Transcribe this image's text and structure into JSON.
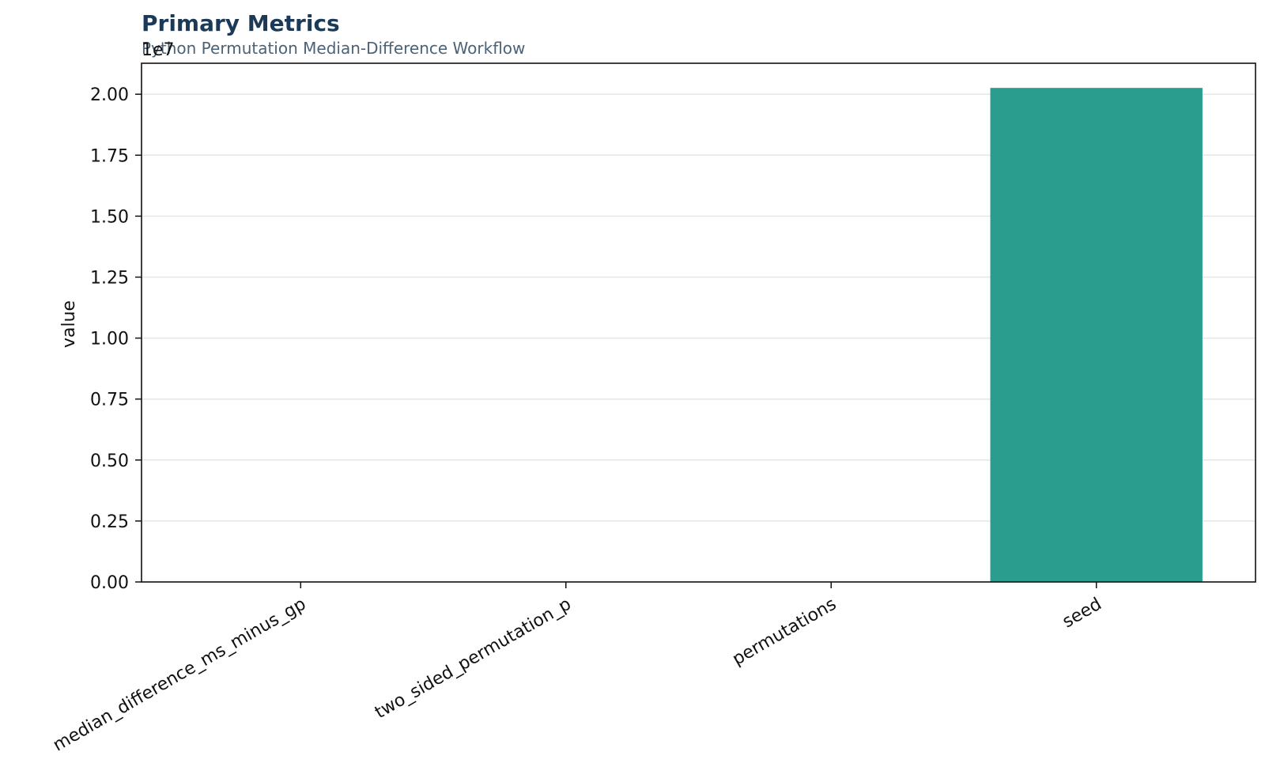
{
  "chart_data": {
    "type": "bar",
    "title": "Primary Metrics",
    "subtitle": "Python Permutation Median-Difference Workflow",
    "xlabel": "",
    "ylabel": "value",
    "y_offset_label": "1e7",
    "categories": [
      "median_difference_ms_minus_gp",
      "two_sided_permutation_p",
      "permutations",
      "seed"
    ],
    "values": [
      0,
      0,
      10000,
      20260000
    ],
    "y_ticks": [
      0,
      2500000,
      5000000,
      7500000,
      10000000,
      12500000,
      15000000,
      17500000,
      20000000
    ],
    "y_tick_labels": [
      "0.00",
      "0.25",
      "0.50",
      "0.75",
      "1.00",
      "1.25",
      "1.50",
      "1.75",
      "2.00"
    ],
    "ylim": [
      0,
      21270000
    ],
    "grid": "y",
    "legend": "none",
    "bar_color": "#2a9d8f"
  }
}
